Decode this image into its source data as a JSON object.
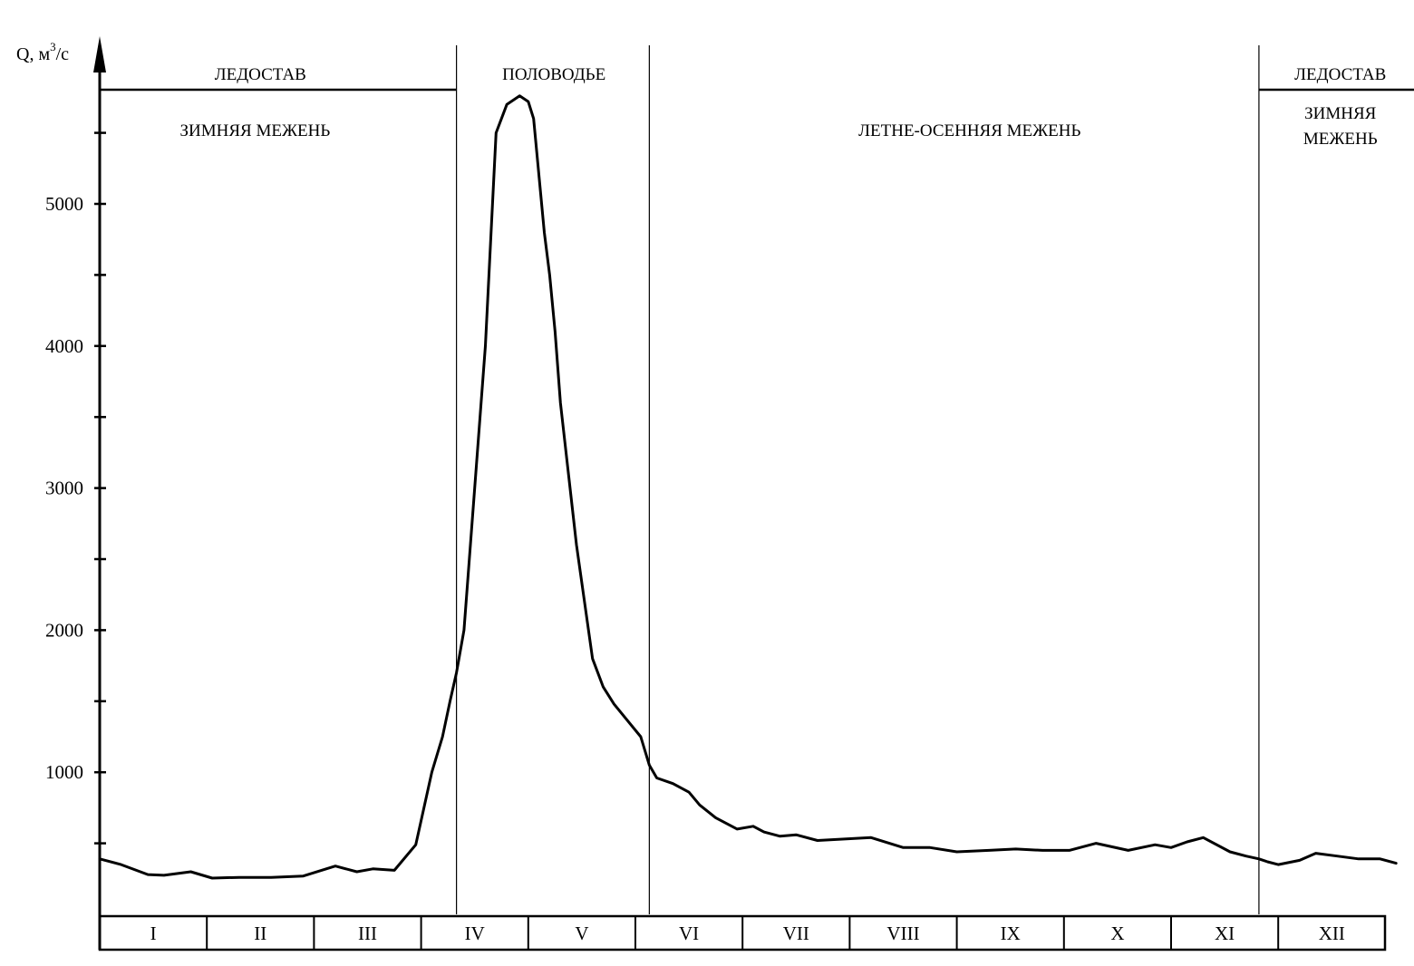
{
  "chart_data": {
    "type": "line",
    "ylabel": "Q, м",
    "ylabel_superscript": "3",
    "ylabel_unit_suffix": "/с",
    "ylim": [
      0,
      6300
    ],
    "yticks": [
      5000,
      4000,
      3000,
      2000,
      1000
    ],
    "months": [
      "I",
      "II",
      "III",
      "IV",
      "V",
      "VI",
      "VII",
      "VIII",
      "IX",
      "X",
      "XI",
      "XII"
    ],
    "phase_boundaries_month": [
      3.33,
      5.13,
      10.82
    ],
    "top_labels": [
      {
        "text": "ЛЕДОСТАВ",
        "x": 1.5
      },
      {
        "text": "ПОЛОВОДЬЕ",
        "x": 4.24
      },
      {
        "text": "ЛЕДОСТАВ",
        "x": 11.58
      }
    ],
    "phase_labels": [
      {
        "lines": [
          "ЗИМНЯЯ МЕЖЕНЬ"
        ],
        "x": 1.45
      },
      {
        "lines": [
          "ЛЕТНЕ-ОСЕННЯЯ МЕЖЕНЬ"
        ],
        "x": 8.12
      },
      {
        "lines": [
          "ЗИМНЯЯ",
          "МЕЖЕНЬ"
        ],
        "x": 11.58
      }
    ],
    "series": [
      {
        "x": [
          0,
          0.2,
          0.45,
          0.6,
          0.85,
          1.05,
          1.3,
          1.6,
          1.9,
          2.2,
          2.4,
          2.55,
          2.75,
          2.95,
          3.1,
          3.2,
          3.27,
          3.33,
          3.4,
          3.5,
          3.6,
          3.7,
          3.8,
          3.92,
          4.0,
          4.05,
          4.15,
          4.2,
          4.25,
          4.3,
          4.45,
          4.6,
          4.7,
          4.8,
          4.92,
          5.05,
          5.13,
          5.2,
          5.35,
          5.5,
          5.6,
          5.75,
          5.95,
          6.1,
          6.2,
          6.35,
          6.5,
          6.7,
          6.95,
          7.2,
          7.5,
          7.75,
          8.0,
          8.3,
          8.55,
          8.8,
          9.05,
          9.3,
          9.6,
          9.85,
          10.0,
          10.15,
          10.3,
          10.55,
          10.7,
          10.82,
          10.9,
          11.0,
          11.2,
          11.35,
          11.55,
          11.75,
          11.95,
          12.1
        ],
        "y": [
          390,
          350,
          280,
          275,
          300,
          255,
          260,
          260,
          270,
          340,
          300,
          320,
          310,
          490,
          1000,
          1250,
          1500,
          1700,
          2000,
          3000,
          4000,
          5500,
          5700,
          5760,
          5720,
          5600,
          4800,
          4500,
          4100,
          3600,
          2600,
          1800,
          1600,
          1480,
          1370,
          1250,
          1050,
          960,
          920,
          860,
          770,
          680,
          600,
          620,
          580,
          550,
          560,
          520,
          530,
          540,
          470,
          470,
          440,
          450,
          460,
          450,
          450,
          500,
          450,
          490,
          470,
          510,
          540,
          440,
          410,
          390,
          370,
          350,
          380,
          430,
          410,
          390,
          390,
          360
        ]
      }
    ]
  }
}
